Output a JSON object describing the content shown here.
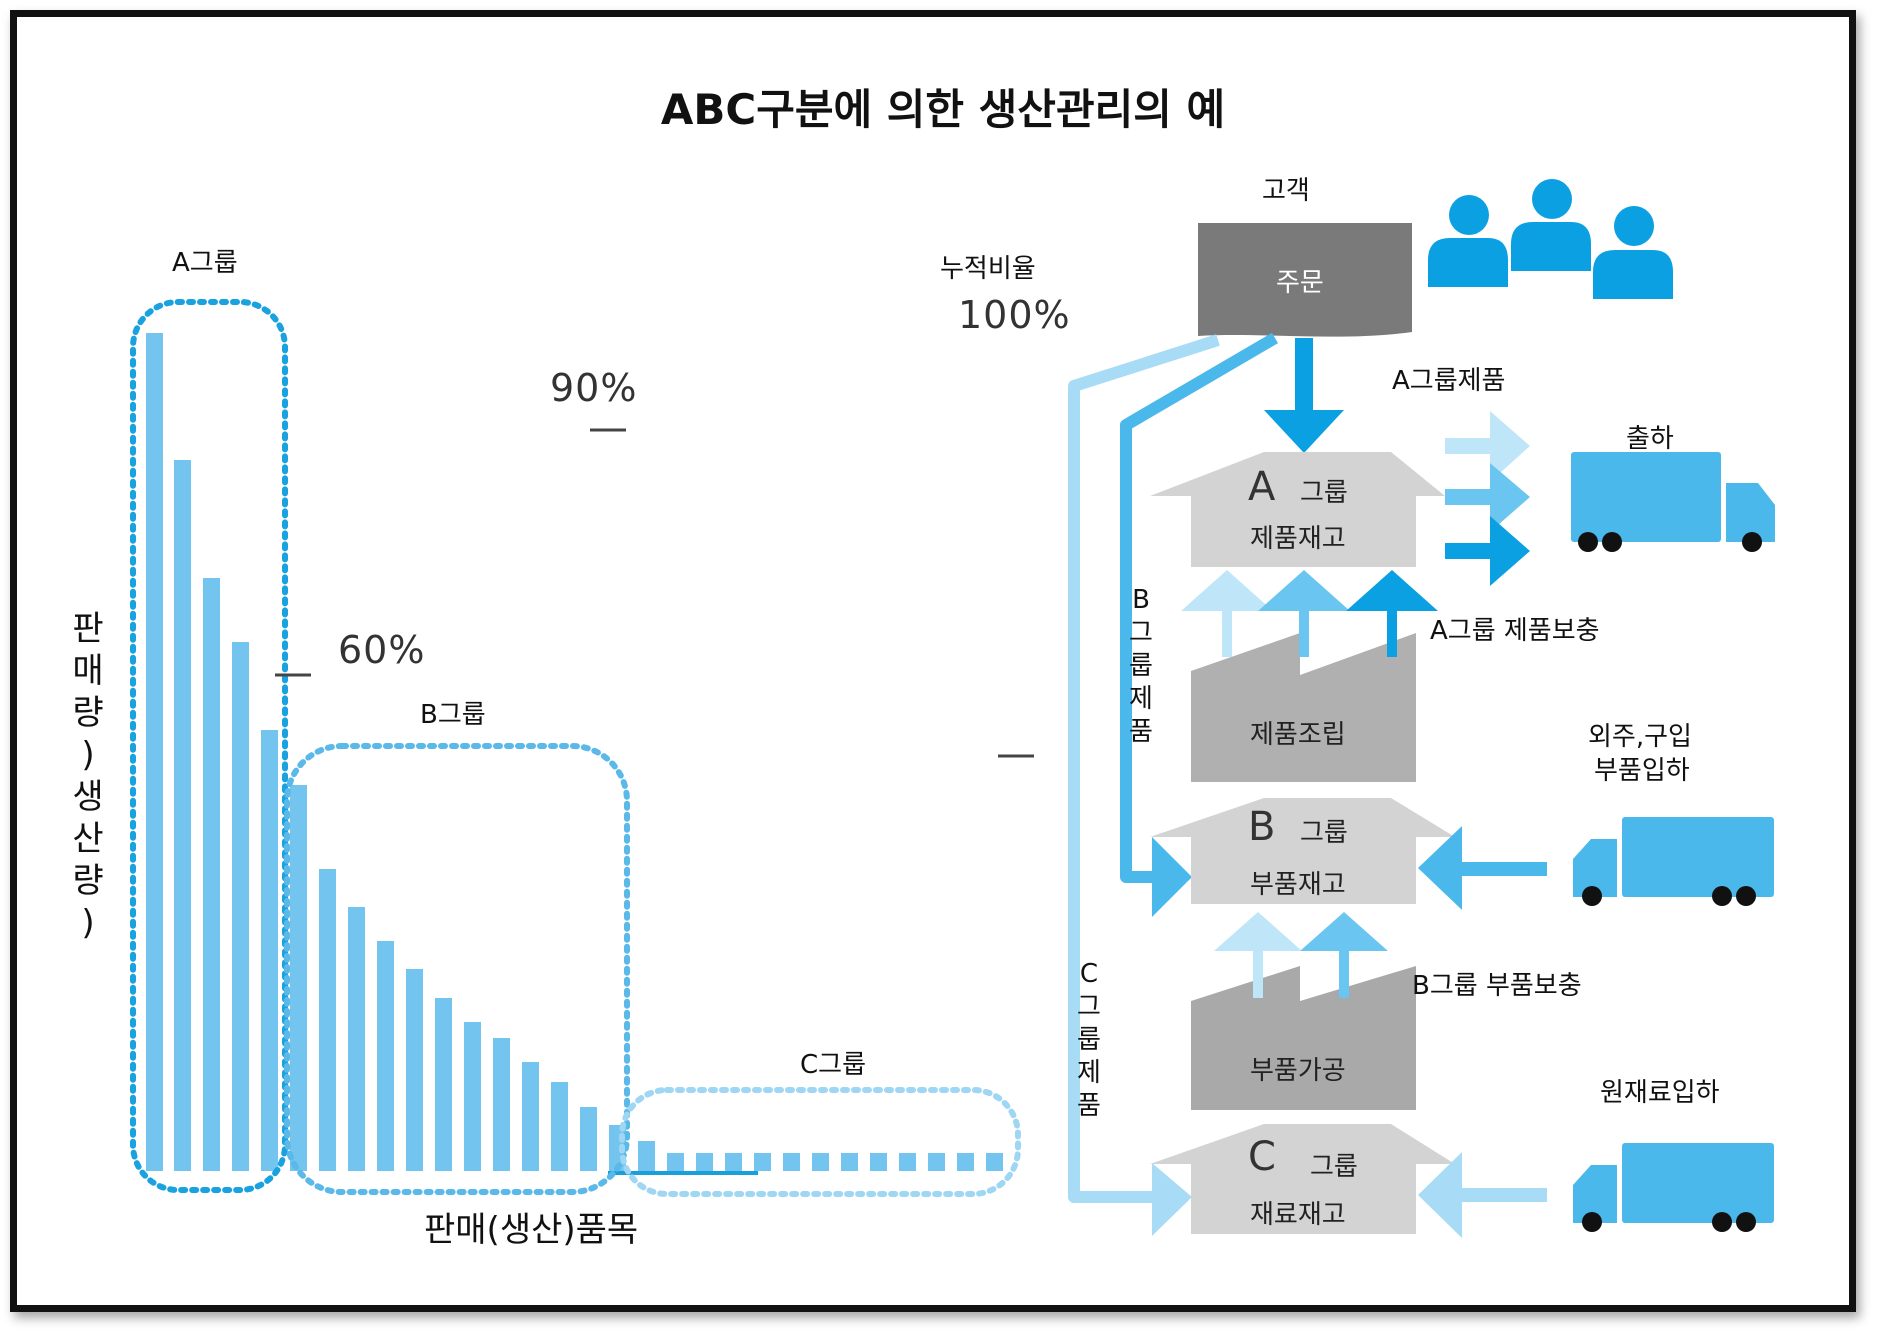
{
  "title": "ABC구분에 의한 생산관리의 예",
  "pareto": {
    "group_a": "A그룹",
    "group_b": "B그룹",
    "group_c": "C그룹",
    "y_label_chars": [
      "판",
      "매",
      "량",
      ")",
      "생",
      "산",
      "량",
      ")"
    ],
    "x_label": "판매(생산)품목",
    "cumulative_label": "누적비율",
    "pct_100": "100%",
    "pct_90": "90%",
    "pct_60": "60%"
  },
  "flow": {
    "customer": "고객",
    "order": "주문",
    "a_product_label": "A그룹제품",
    "shipping": "출하",
    "a_inventory_letter": "A",
    "a_inventory_group": "그룹",
    "a_inventory_name": "제품재고",
    "b_product_chars": [
      "B",
      "그",
      "룹",
      "제",
      "품"
    ],
    "a_replenish": "A그룹 제품보충",
    "assembly": "제품조립",
    "outsource_line1": "외주,구입",
    "outsource_line2": "부품입하",
    "b_inventory_letter": "B",
    "b_inventory_group": "그룹",
    "b_inventory_name": "부품재고",
    "c_product_chars": [
      "C",
      "그",
      "룹",
      "제",
      "품"
    ],
    "b_replenish": "B그룹 부품보충",
    "processing": "부품가공",
    "raw_material": "원재료입하",
    "c_inventory_letter": "C",
    "c_inventory_group": "그룹",
    "c_inventory_name": "재료재고"
  }
}
